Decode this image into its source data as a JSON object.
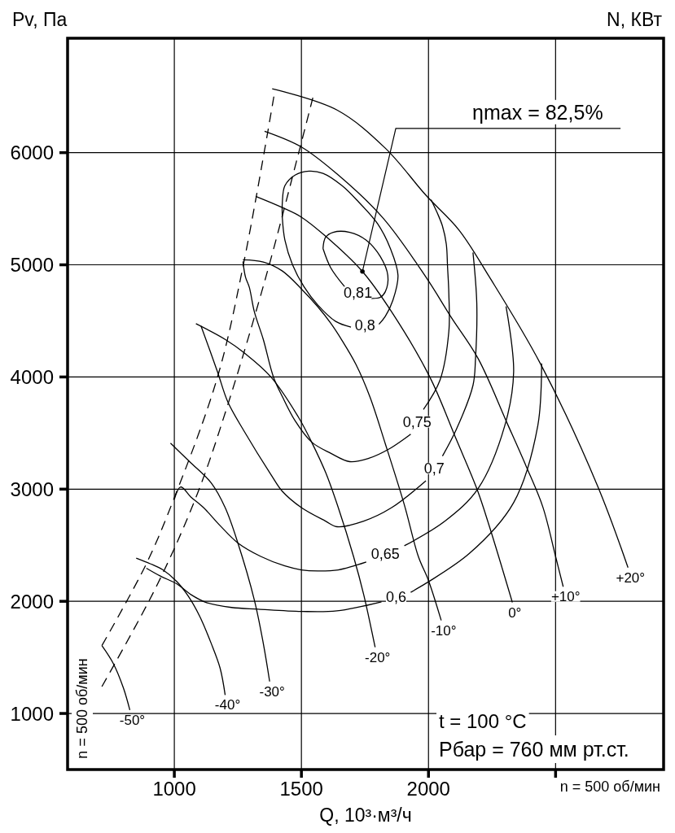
{
  "chart_data": {
    "type": "line",
    "xlabel": "Q, 10³·м³/ч",
    "ylabel": "Pv, Па",
    "y2label": "N, КВт",
    "xlim": [
      580,
      2925
    ],
    "ylim": [
      500,
      7020
    ],
    "xticks": [
      1000,
      1500,
      2000,
      {
        "value": 2500,
        "label": null
      }
    ],
    "yticks": [
      1000,
      2000,
      3000,
      4000,
      5000,
      6000
    ],
    "grid": true,
    "line_style": "solid",
    "series": [
      {
        "name": "+20°",
        "color": "#000000",
        "x": [
          1385,
          1640,
          1830,
          1990,
          2120,
          2240,
          2440,
          2665,
          2785
        ],
        "values": [
          6570,
          6380,
          6040,
          5620,
          5310,
          4890,
          4120,
          3030,
          2300
        ]
      },
      {
        "name": "+10°",
        "color": "#000000",
        "x": [
          1355,
          1500,
          1640,
          1820,
          1990,
          2090,
          2195,
          2310,
          2385,
          2450,
          2500,
          2530
        ],
        "values": [
          6190,
          6050,
          5810,
          5420,
          4890,
          4530,
          4165,
          3585,
          3200,
          2840,
          2400,
          2130
        ]
      },
      {
        "name": "0°",
        "color": "#000000",
        "x": [
          1320,
          1425,
          1500,
          1595,
          1740,
          1855,
          2005,
          2110,
          2190,
          2240,
          2330
        ],
        "values": [
          5610,
          5510,
          5425,
          5255,
          4940,
          4580,
          4000,
          3440,
          3005,
          2665,
          1990
        ]
      },
      {
        "name": "-10°",
        "color": "#000000",
        "x": [
          1270,
          1350,
          1425,
          1500,
          1565,
          1615,
          1660,
          1715,
          1770,
          1830,
          1905,
          1960,
          2000,
          2050
        ],
        "values": [
          5045,
          5025,
          4945,
          4785,
          4625,
          4480,
          4325,
          4110,
          3820,
          3405,
          2860,
          2400,
          2185,
          1830
        ]
      },
      {
        "name": "-20°",
        "color": "#000000",
        "x": [
          1085,
          1200,
          1275,
          1380,
          1490,
          1540,
          1595,
          1645,
          1705,
          1745,
          1790
        ],
        "values": [
          4475,
          4335,
          4215,
          4000,
          3635,
          3420,
          3150,
          2835,
          2400,
          2060,
          1590
        ]
      },
      {
        "name": "-30°",
        "color": "#000000",
        "x": [
          985,
          1060,
          1145,
          1200,
          1250,
          1315,
          1350,
          1375
        ],
        "values": [
          3410,
          3245,
          3055,
          2835,
          2520,
          2010,
          1625,
          1285
        ]
      },
      {
        "name": "-40°",
        "color": "#000000",
        "x": [
          850,
          905,
          955,
          1010,
          1055,
          1100,
          1145,
          1180,
          1200
        ],
        "values": [
          2385,
          2335,
          2280,
          2175,
          2045,
          1865,
          1625,
          1405,
          1165
        ]
      },
      {
        "name": "-50°",
        "color": "#000000",
        "x": [
          715,
          760,
          800,
          825
        ],
        "values": [
          1605,
          1445,
          1225,
          1030
        ]
      },
      {
        "name": "0,81",
        "color": "#000000",
        "x": [
          1585,
          1615,
          1670,
          1720,
          1775,
          1810,
          1830,
          1840,
          1810,
          1755,
          1690,
          1625,
          1595,
          1585
        ],
        "values": [
          5145,
          4975,
          4805,
          null,
          4700,
          4710,
          4760,
          4905,
          5075,
          5220,
          5290,
          5290,
          5245,
          5145
        ]
      },
      {
        "name": "0,8",
        "color": "#000000",
        "x": [
          1425,
          1435,
          1465,
          1510,
          1565,
          1635,
          1695,
          1750,
          1805,
          1830,
          1860,
          1880,
          1850,
          1800,
          1725,
          1660,
          1585,
          1530,
          1475,
          1435,
          1425,
          1425
        ],
        "values": [
          5415,
          5220,
          5000,
          4805,
          4640,
          4495,
          4445,
          null,
          4470,
          4540,
          4685,
          4905,
          5145,
          5365,
          5560,
          5705,
          5815,
          5835,
          5800,
          5705,
          5560,
          5415
        ]
      },
      {
        "name": "0,75",
        "color": "#000000",
        "x": [
          1270,
          1280,
          1295,
          1315,
          1350,
          1390,
          1425,
          1475,
          1540,
          1615,
          1690,
          1765,
          1850,
          1930,
          1955,
          1980,
          2045,
          2080,
          2080,
          2075,
          2070,
          2055,
          2035,
          2010
        ],
        "values": [
          5030,
          4890,
          4800,
          4580,
          4335,
          4000,
          3825,
          3610,
          3420,
          3320,
          3245,
          3275,
          3365,
          3490,
          null,
          3710,
          3970,
          4405,
          4745,
          4980,
          5185,
          5345,
          5460,
          5580
        ]
      },
      {
        "name": "0,7",
        "color": "#000000",
        "x": [
          1105,
          1170,
          1210,
          1275,
          1380,
          1425,
          1500,
          1595,
          1640,
          1745,
          1855,
          1990,
          2020,
          2055,
          2110,
          2175,
          2185,
          2190,
          2175
        ],
        "values": [
          4455,
          4045,
          3780,
          3515,
          3130,
          2980,
          2835,
          2715,
          2665,
          2715,
          2835,
          3075,
          null,
          3295,
          3535,
          3925,
          4165,
          4655,
          5110
        ]
      },
      {
        "name": "0,65",
        "color": "#000000",
        "x": [
          1000,
          1025,
          1065,
          1115,
          1180,
          1250,
          1340,
          1435,
          1500,
          1565,
          1645,
          1755,
          1830,
          1905,
          2065,
          2195,
          2300,
          2335,
          2305
        ],
        "values": [
          2910,
          3020,
          2930,
          2835,
          2675,
          2520,
          2400,
          2315,
          2280,
          2270,
          2280,
          2350,
          null,
          2495,
          2715,
          3005,
          3565,
          4045,
          4630
        ]
      },
      {
        "name": "0,6",
        "color": "#000000",
        "x": [
          890,
          945,
          1010,
          1065,
          1125,
          1225,
          1330,
          1500,
          1640,
          1815,
          1870,
          1930,
          2160,
          2335,
          2430,
          2445
        ],
        "values": [
          2295,
          2225,
          2155,
          2060,
          1990,
          1945,
          1930,
          1910,
          1915,
          1995,
          null,
          2080,
          2425,
          2880,
          3565,
          4120
        ]
      },
      {
        "color": "#000000",
        "line_style": "dashed",
        "x": [
          715,
          890,
          995,
          1170,
          1275,
          1395
        ],
        "values": [
          1605,
          2335,
          2895,
          4000,
          5040,
          6545
        ]
      },
      {
        "color": "#000000",
        "line_style": "dashed",
        "x": [
          715,
          930,
          1090,
          1210,
          1360,
          1490,
          1545
        ],
        "values": [
          1240,
          2135,
          2955,
          3750,
          4890,
          6005,
          6490
        ]
      }
    ],
    "annotations": [
      {
        "text": "ηmax = 82,5%",
        "x": 1740,
        "y": 4940
      },
      "t = 100 °C",
      "Рбар = 760 мм рт.ст.",
      "n = 500 об/мин",
      "n = 500 об/мин"
    ]
  }
}
